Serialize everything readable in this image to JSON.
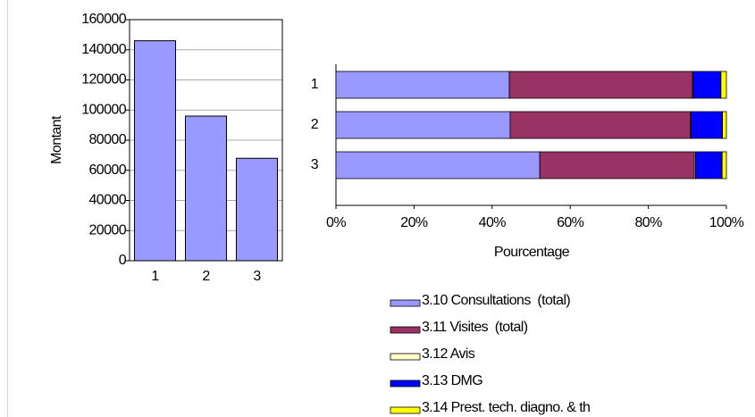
{
  "chart_data": [
    {
      "type": "bar",
      "ylabel": "Montant",
      "categories": [
        "1",
        "2",
        "3"
      ],
      "values": [
        146000,
        96000,
        68000
      ],
      "color": "#9999ff",
      "ylim": [
        0,
        160000
      ],
      "yticks": [
        0,
        20000,
        40000,
        60000,
        80000,
        100000,
        120000,
        140000,
        160000
      ],
      "grid": true
    },
    {
      "type": "stacked-hbar",
      "xlabel": "Pourcentage",
      "categories": [
        "1",
        "2",
        "3"
      ],
      "xlim": [
        0,
        100
      ],
      "xticks": [
        {
          "value": 0,
          "label": "0%"
        },
        {
          "value": 20,
          "label": "20%"
        },
        {
          "value": 40,
          "label": "40%"
        },
        {
          "value": 60,
          "label": "60%"
        },
        {
          "value": 80,
          "label": "80%"
        },
        {
          "value": 100,
          "label": "100%"
        }
      ],
      "series": [
        {
          "name": "3.10 Consultations  (total)",
          "color": "#9999ff",
          "values": [
            44.4,
            44.6,
            52.2
          ]
        },
        {
          "name": "3.11 Visites  (total)",
          "color": "#993366",
          "values": [
            46.9,
            46.2,
            39.6
          ]
        },
        {
          "name": "3.12 Avis",
          "color": "#ffffcc",
          "values": [
            0.2,
            0.2,
            0.3
          ]
        },
        {
          "name": "3.13 DMG",
          "color": "#0000ff",
          "values": [
            7.1,
            8.0,
            6.8
          ]
        },
        {
          "name": "3.14 Prest. tech. diagno. & th",
          "color": "#ffff00",
          "values": [
            1.4,
            1.0,
            1.1
          ]
        }
      ]
    }
  ]
}
